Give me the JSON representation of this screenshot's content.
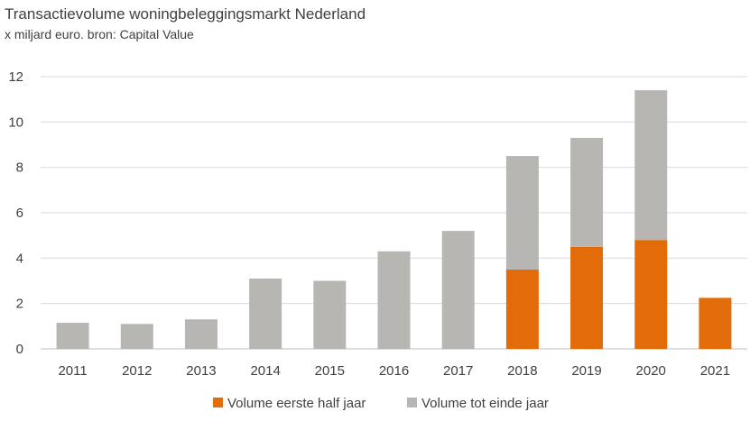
{
  "title": "Transactievolume woningbeleggingsmarkt Nederland",
  "subtitle": "x miljard euro. bron: Capital Value",
  "chart_data": {
    "type": "bar",
    "stacked": true,
    "categories": [
      "2011",
      "2012",
      "2013",
      "2014",
      "2015",
      "2016",
      "2017",
      "2018",
      "2019",
      "2020",
      "2021"
    ],
    "series": [
      {
        "name": "Volume eerste half jaar",
        "color": "#E36C0A",
        "values": [
          0,
          0,
          0,
          0,
          0,
          0,
          0,
          3.5,
          4.5,
          4.8,
          2.25
        ]
      },
      {
        "name": "Volume tot einde jaar",
        "color": "#B7B6B3",
        "values": [
          1.15,
          1.1,
          1.3,
          3.1,
          3.0,
          4.3,
          5.2,
          5.0,
          4.8,
          6.6,
          0
        ]
      }
    ],
    "ylim": [
      0,
      12
    ],
    "yticks": [
      0,
      2,
      4,
      6,
      8,
      10,
      12
    ],
    "grid": true,
    "legend_position": "bottom-center",
    "xlabel": "",
    "ylabel": ""
  }
}
